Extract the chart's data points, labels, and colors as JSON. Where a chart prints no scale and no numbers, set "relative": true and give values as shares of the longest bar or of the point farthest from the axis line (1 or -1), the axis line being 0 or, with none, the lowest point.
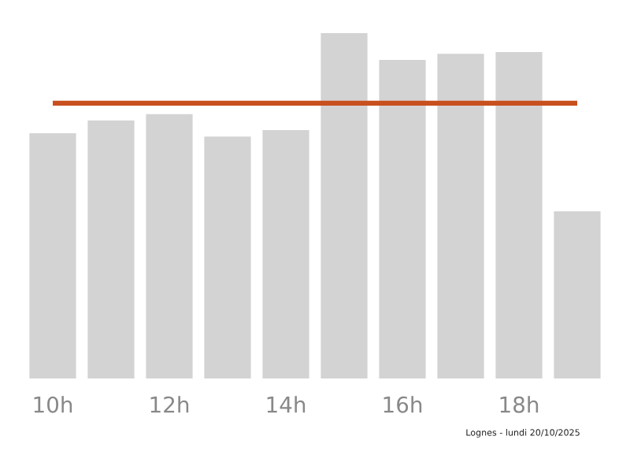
{
  "chart_data": {
    "type": "bar",
    "relative": true,
    "categories": [
      "10h",
      null,
      "12h",
      null,
      "14h",
      null,
      "16h",
      null,
      "18h",
      null
    ],
    "values": [
      0.71,
      0.747,
      0.765,
      0.7,
      0.719,
      1,
      0.922,
      0.94,
      0.945,
      0.484
    ],
    "color": "#d3d3d3",
    "ref_lines": [
      {
        "axis": "y",
        "value": 0.797,
        "color": "#c8501e"
      }
    ],
    "annotations": [
      "Lognes - lundi 20/10/2025"
    ],
    "grid": false,
    "legend": false
  }
}
